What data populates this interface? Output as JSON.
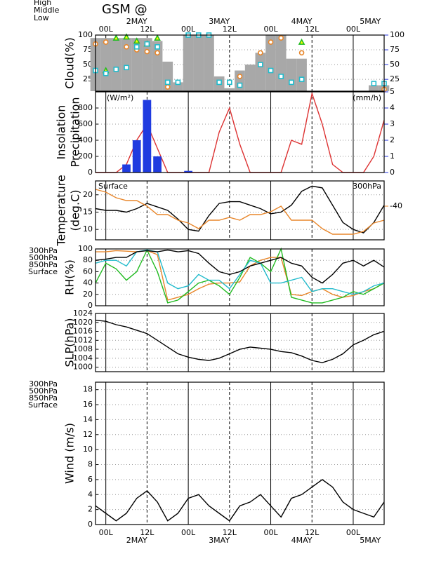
{
  "title": "GSM @",
  "time_axis": {
    "xlim": [
      -3,
      81
    ],
    "xticks": [
      {
        "value": 0,
        "label": "00L"
      },
      {
        "value": 12,
        "label": "12L"
      },
      {
        "value": 24,
        "label": "00L"
      },
      {
        "value": 36,
        "label": "12L"
      },
      {
        "value": 48,
        "label": "00L"
      },
      {
        "value": 60,
        "label": "12L"
      },
      {
        "value": 72,
        "label": "00L"
      }
    ],
    "dates": [
      {
        "value": 9,
        "label": "2MAY"
      },
      {
        "value": 33,
        "label": "3MAY"
      },
      {
        "value": 57,
        "label": "4MAY"
      },
      {
        "value": 80,
        "label": "5MAY"
      }
    ]
  },
  "chart_data": [
    {
      "type": "bar",
      "ylabel": "Cloud(%)",
      "ylim": [
        5,
        100
      ],
      "yticks": [
        25,
        50,
        75,
        100
      ],
      "y2lim": [
        5,
        100
      ],
      "y2ticks": [
        25,
        50,
        75,
        100
      ],
      "y2_color": "#2233dd",
      "grid": true,
      "legend": "above-left",
      "x": [
        -3,
        0,
        3,
        6,
        9,
        12,
        15,
        18,
        21,
        24,
        27,
        30,
        33,
        36,
        39,
        42,
        45,
        48,
        51,
        54,
        57,
        60,
        63,
        66,
        69,
        72,
        75,
        78,
        81
      ],
      "series": [
        {
          "kind": "bar",
          "color": "#a8a8a8",
          "values": [
            95,
            95,
            95,
            95,
            95,
            95,
            90,
            55,
            20,
            100,
            100,
            100,
            30,
            10,
            40,
            50,
            70,
            100,
            100,
            60,
            60,
            5,
            5,
            5,
            5,
            5,
            5,
            15,
            15
          ]
        },
        {
          "name": "High",
          "kind": "circle",
          "color": "#e8862a",
          "values": [
            85,
            88,
            null,
            80,
            75,
            72,
            70,
            12,
            null,
            null,
            null,
            null,
            null,
            null,
            30,
            null,
            70,
            88,
            95,
            null,
            70,
            null,
            null,
            null,
            null,
            null,
            null,
            null,
            8
          ]
        },
        {
          "name": "Middle",
          "kind": "triangle",
          "color": "#22bb22",
          "values": [
            null,
            40,
            95,
            97,
            90,
            85,
            95,
            null,
            null,
            null,
            null,
            null,
            null,
            null,
            null,
            null,
            null,
            null,
            null,
            null,
            88,
            null,
            null,
            null,
            null,
            null,
            null,
            null,
            null
          ]
        },
        {
          "name": "Low",
          "kind": "square",
          "color": "#22bbcc",
          "values": [
            40,
            35,
            42,
            45,
            80,
            85,
            80,
            20,
            20,
            100,
            100,
            100,
            20,
            20,
            15,
            null,
            50,
            40,
            30,
            20,
            25,
            null,
            null,
            null,
            null,
            null,
            null,
            18,
            18
          ]
        }
      ]
    },
    {
      "type": "bar",
      "ylabel": [
        "Insolation",
        "Precipitation"
      ],
      "y_unit": "(W/m²)",
      "y_unit_color": "#dd3333",
      "y2_unit": "(mm/h)",
      "y2_color": "#2233dd",
      "ylim": [
        0,
        1000
      ],
      "yticks": [
        0,
        200,
        400,
        600,
        800
      ],
      "y2lim": [
        0,
        5
      ],
      "y2ticks": [
        0,
        1,
        2,
        3,
        4,
        5
      ],
      "grid": true,
      "x": [
        -3,
        0,
        3,
        6,
        9,
        12,
        15,
        18,
        21,
        24,
        27,
        30,
        33,
        36,
        39,
        42,
        45,
        48,
        51,
        54,
        57,
        60,
        63,
        66,
        69,
        72,
        75,
        78,
        81
      ],
      "series": [
        {
          "kind": "line",
          "color": "#dd3333",
          "values": [
            0,
            0,
            0,
            100,
            400,
            600,
            300,
            0,
            0,
            0,
            0,
            0,
            500,
            800,
            350,
            0,
            0,
            0,
            0,
            400,
            350,
            980,
            600,
            100,
            0,
            0,
            0,
            200,
            650
          ]
        },
        {
          "kind": "bar",
          "axis": "y2",
          "color": "#1f3be0",
          "values": [
            0,
            0,
            0,
            0.5,
            2,
            4.5,
            1,
            0,
            0,
            0.1,
            0,
            0,
            0,
            0,
            0,
            0,
            0,
            0,
            0,
            0,
            0,
            0,
            0,
            0,
            0,
            0,
            0,
            0,
            0
          ]
        }
      ]
    },
    {
      "type": "line",
      "ylabel": [
        "Temperature",
        "(deg.C)"
      ],
      "ylim": [
        7,
        24
      ],
      "yticks": [
        10,
        15,
        20
      ],
      "y2lim": [
        -52,
        -31
      ],
      "y2ticks": [
        -40
      ],
      "y2_color": "#e8862a",
      "grid": true,
      "legend": "inside-corners",
      "x": [
        -3,
        0,
        3,
        6,
        9,
        12,
        15,
        18,
        21,
        24,
        27,
        30,
        33,
        36,
        39,
        42,
        45,
        48,
        51,
        54,
        57,
        60,
        63,
        66,
        69,
        72,
        75,
        78,
        81
      ],
      "series": [
        {
          "name": "Surface",
          "color": "#000000",
          "values": [
            16,
            15.5,
            15.5,
            15,
            16,
            17.5,
            16.5,
            15.5,
            13,
            10,
            9.5,
            14,
            17.5,
            18,
            18,
            17,
            16,
            14.5,
            15,
            17,
            21,
            22.5,
            22,
            17,
            12,
            10,
            9,
            12,
            17
          ]
        },
        {
          "name": "300hPa",
          "axis": "y2",
          "color": "#e8862a",
          "values": [
            -34,
            -35,
            -37,
            -38,
            -38,
            -40,
            -43,
            -43,
            -45,
            -46,
            -48,
            -45,
            -45,
            -44,
            -45,
            -43,
            -43,
            -42,
            -40,
            -45,
            -45,
            -45,
            -48,
            -50,
            -50,
            -50,
            -49,
            -46,
            -45
          ]
        }
      ]
    },
    {
      "type": "line",
      "ylabel": "RH(%)",
      "ylim": [
        0,
        100
      ],
      "yticks": [
        0,
        20,
        40,
        60,
        80,
        100
      ],
      "grid": true,
      "legend": "outside-left",
      "x": [
        -3,
        0,
        3,
        6,
        9,
        12,
        15,
        18,
        21,
        24,
        27,
        30,
        33,
        36,
        39,
        42,
        45,
        48,
        51,
        54,
        57,
        60,
        63,
        66,
        69,
        72,
        75,
        78,
        81
      ],
      "series": [
        {
          "name": "300hPa",
          "color": "#e8862a",
          "values": [
            95,
            95,
            97,
            96,
            95,
            97,
            90,
            10,
            15,
            20,
            30,
            38,
            40,
            40,
            42,
            70,
            80,
            85,
            85,
            20,
            18,
            25,
            30,
            20,
            15,
            18,
            25,
            30,
            40
          ]
        },
        {
          "name": "500hPa",
          "color": "#22bb22",
          "values": [
            40,
            75,
            65,
            45,
            60,
            98,
            60,
            5,
            10,
            25,
            40,
            45,
            35,
            20,
            50,
            85,
            75,
            60,
            100,
            15,
            10,
            5,
            5,
            10,
            15,
            25,
            20,
            30,
            40
          ]
        },
        {
          "name": "850hPa",
          "color": "#22bbcc",
          "values": [
            75,
            80,
            80,
            70,
            95,
            98,
            95,
            40,
            30,
            35,
            55,
            45,
            45,
            30,
            55,
            80,
            75,
            40,
            40,
            45,
            50,
            25,
            30,
            30,
            25,
            20,
            25,
            35,
            40
          ]
        },
        {
          "name": "Surface",
          "color": "#000000",
          "values": [
            80,
            82,
            85,
            85,
            95,
            97,
            95,
            98,
            95,
            97,
            92,
            75,
            60,
            55,
            60,
            70,
            75,
            80,
            85,
            75,
            70,
            50,
            40,
            55,
            75,
            80,
            70,
            80,
            68
          ]
        }
      ]
    },
    {
      "type": "line",
      "ylabel": "SLP(hPa)",
      "ylim": [
        998,
        1024
      ],
      "yticks": [
        1000,
        1004,
        1008,
        1012,
        1016,
        1020,
        1024
      ],
      "grid": true,
      "x": [
        -3,
        0,
        3,
        6,
        9,
        12,
        15,
        18,
        21,
        24,
        27,
        30,
        33,
        36,
        39,
        42,
        45,
        48,
        51,
        54,
        57,
        60,
        63,
        66,
        69,
        72,
        75,
        78,
        81
      ],
      "series": [
        {
          "color": "#000000",
          "values": [
            1021,
            1020.5,
            1019,
            1018,
            1016.5,
            1015,
            1012,
            1009,
            1006,
            1004.5,
            1003.5,
            1003,
            1004,
            1006,
            1008,
            1009,
            1008.5,
            1008,
            1007,
            1006.5,
            1005,
            1003,
            1002,
            1003.5,
            1006,
            1010,
            1012,
            1014.5,
            1016
          ]
        }
      ]
    },
    {
      "type": "line",
      "ylabel": "Wind  (m/s)",
      "ylim": [
        0,
        19
      ],
      "yticks": [
        0,
        2,
        4,
        6,
        8,
        10,
        12,
        14,
        16,
        18
      ],
      "grid": true,
      "legend": "outside-left",
      "legend_entries": [
        {
          "name": "300hPa",
          "color": "#e8862a"
        },
        {
          "name": "500hPa",
          "color": "#22bb22"
        },
        {
          "name": "850hPa",
          "color": "#22bbcc"
        },
        {
          "name": "Surface",
          "color": "#000000"
        }
      ],
      "x": [
        -3,
        0,
        3,
        6,
        9,
        12,
        15,
        18,
        21,
        24,
        27,
        30,
        33,
        36,
        39,
        42,
        45,
        48,
        51,
        54,
        57,
        60,
        63,
        66,
        69,
        72,
        75,
        78,
        81
      ],
      "series": [
        {
          "color": "#000000",
          "values": [
            2.5,
            1.5,
            0.5,
            1.5,
            3.5,
            4.5,
            3,
            0.5,
            1.5,
            3.5,
            4,
            2.5,
            1.5,
            0.5,
            2.5,
            3,
            4,
            2.5,
            1,
            3.5,
            4,
            5,
            6,
            5,
            3,
            2,
            1.5,
            1,
            3
          ]
        }
      ]
    }
  ]
}
